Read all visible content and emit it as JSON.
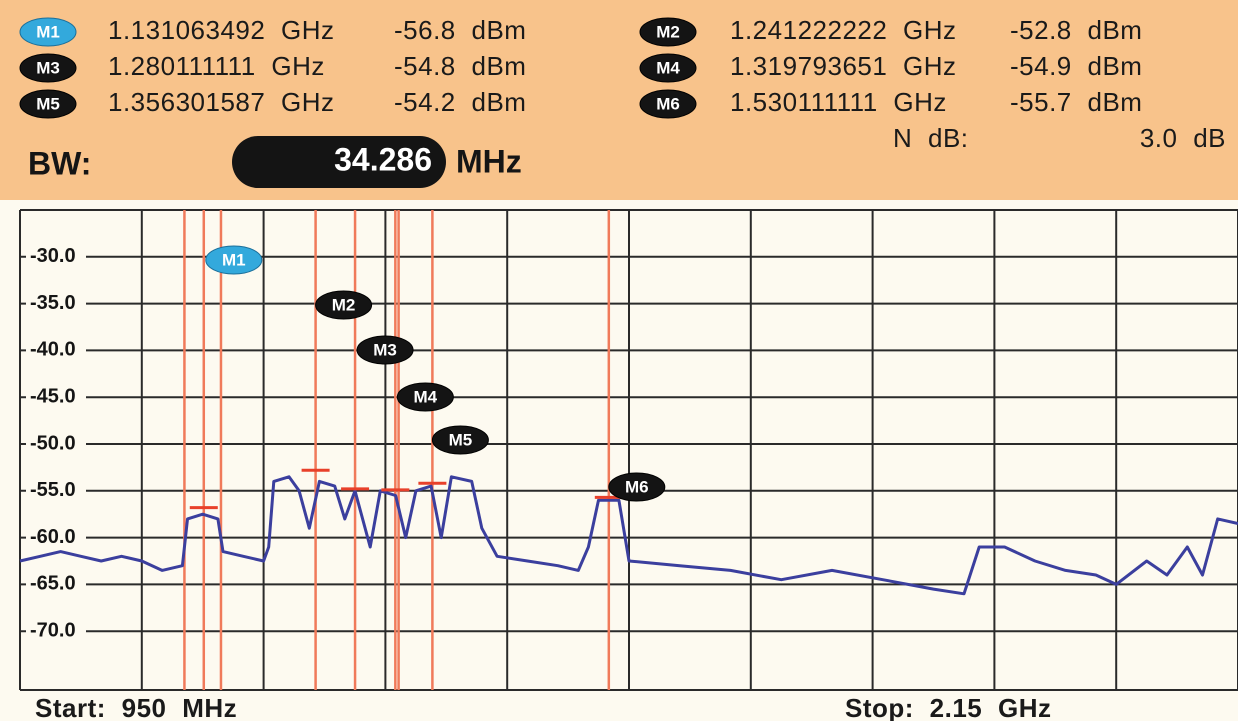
{
  "markers": [
    {
      "name": "M1",
      "frequency": {
        "value": 1131.063492,
        "label": "1.131063492 GHz"
      },
      "amplitude": {
        "value": -56.8,
        "label": "-56.8 dBm"
      }
    },
    {
      "name": "M2",
      "frequency": {
        "value": 1241.222222,
        "label": "1.241222222 GHz"
      },
      "amplitude": {
        "value": -52.8,
        "label": "-52.8 dBm"
      }
    },
    {
      "name": "M3",
      "frequency": {
        "value": 1280.111111,
        "label": "1.280111111 GHz"
      },
      "amplitude": {
        "value": -54.8,
        "label": "-54.8 dBm"
      }
    },
    {
      "name": "M4",
      "frequency": {
        "value": 1319.793651,
        "label": "1.319793651 GHz"
      },
      "amplitude": {
        "value": -54.9,
        "label": "-54.9 dBm"
      }
    },
    {
      "name": "M5",
      "frequency": {
        "value": 1356.301587,
        "label": "1.356301587 GHz"
      },
      "amplitude": {
        "value": -54.2,
        "label": "-54.2 dBm"
      }
    },
    {
      "name": "M6",
      "frequency": {
        "value": 1530.111111,
        "label": "1.530111111 GHz"
      },
      "amplitude": {
        "value": -55.7,
        "label": "-55.7 dBm"
      }
    }
  ],
  "bw": {
    "label": "BW:",
    "value": "34.286",
    "unit": "MHz"
  },
  "ndb": {
    "label": "N dB:",
    "value": "3.0 dB"
  },
  "spectrum": {
    "type": "line",
    "start_label": "Start:  950 MHz",
    "stop_label": "Stop: 2.15 GHz",
    "xlim": [
      950,
      2150
    ],
    "x_divisions": 10,
    "ylim": [
      -75,
      -25
    ],
    "yticks": [
      {
        "value": -30,
        "label": "-30.0"
      },
      {
        "value": -35,
        "label": "-35.0"
      },
      {
        "value": -40,
        "label": "-40.0"
      },
      {
        "value": -45,
        "label": "-45.0"
      },
      {
        "value": -50,
        "label": "-50.0"
      },
      {
        "value": -55,
        "label": "-55.0"
      },
      {
        "value": -60,
        "label": "-60.0"
      },
      {
        "value": -65,
        "label": "-65.0"
      },
      {
        "value": -70,
        "label": "-70.0"
      }
    ],
    "reference_lines": [
      1112,
      1148,
      1323
    ],
    "color": "#3b3f9e",
    "x": [
      950,
      970,
      990,
      1010,
      1030,
      1050,
      1070,
      1090,
      1110,
      1115,
      1130,
      1145,
      1150,
      1170,
      1190,
      1195,
      1200,
      1215,
      1225,
      1235,
      1245,
      1260,
      1270,
      1280,
      1295,
      1305,
      1320,
      1330,
      1340,
      1355,
      1365,
      1375,
      1395,
      1405,
      1420,
      1450,
      1480,
      1500,
      1510,
      1520,
      1540,
      1550,
      1600,
      1650,
      1700,
      1750,
      1800,
      1850,
      1880,
      1895,
      1920,
      1950,
      1980,
      2010,
      2030,
      2060,
      2080,
      2100,
      2115,
      2130,
      2150
    ],
    "values": [
      -62.5,
      -62,
      -61.5,
      -62,
      -62.5,
      -62,
      -62.5,
      -63.5,
      -63,
      -58,
      -57.5,
      -58,
      -61.5,
      -62,
      -62.5,
      -61,
      -54,
      -53.5,
      -55,
      -59,
      -54,
      -54.5,
      -58,
      -55,
      -61,
      -55,
      -55.5,
      -60,
      -55,
      -54.5,
      -60,
      -53.5,
      -54,
      -59,
      -62,
      -62.5,
      -63,
      -63.5,
      -61,
      -56,
      -56,
      -62.5,
      -63,
      -63.5,
      -64.5,
      -63.5,
      -64.5,
      -65.5,
      -66,
      -61,
      -61,
      -62.5,
      -63.5,
      -64,
      -65,
      -62.5,
      -64,
      -61,
      -64,
      -58,
      -58.5
    ]
  }
}
